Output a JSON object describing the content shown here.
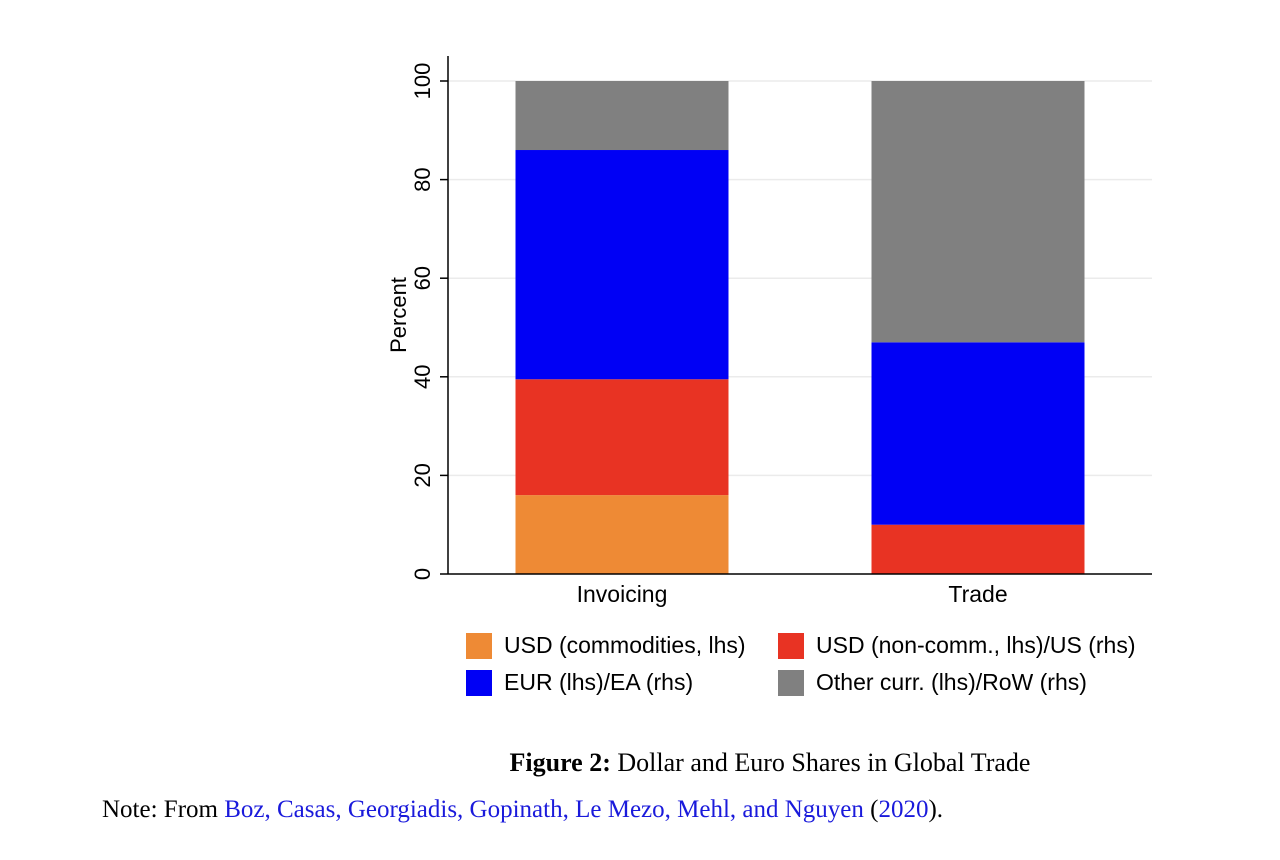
{
  "chart_data": {
    "type": "bar",
    "stacked": true,
    "title": "",
    "xlabel": "",
    "ylabel": "Percent",
    "ylim": [
      0,
      100
    ],
    "yticks": [
      0,
      20,
      40,
      60,
      80,
      100
    ],
    "grid": true,
    "categories": [
      "Invoicing",
      "Trade"
    ],
    "series": [
      {
        "name": "USD (commodities, lhs)",
        "color": "#ee8a35",
        "values": [
          16,
          0
        ]
      },
      {
        "name": "USD (non-comm., lhs)/US (rhs)",
        "color": "#e83323",
        "values": [
          23.5,
          10
        ]
      },
      {
        "name": "EUR (lhs)/EA (rhs)",
        "color": "#0000f5",
        "values": [
          46.5,
          37
        ]
      },
      {
        "name": "Other curr. (lhs)/RoW (rhs)",
        "color": "#808080",
        "values": [
          14,
          53
        ]
      }
    ],
    "legend_position": "bottom"
  },
  "figure": {
    "label": "Figure 2:",
    "title": "Dollar and Euro Shares in Global Trade"
  },
  "note": {
    "prefix": "Note: From ",
    "authors": "Boz, Casas, Georgiadis, Gopinath, Le Mezo, Mehl, and Nguyen",
    "open": " (",
    "year": "2020",
    "close": ")."
  }
}
